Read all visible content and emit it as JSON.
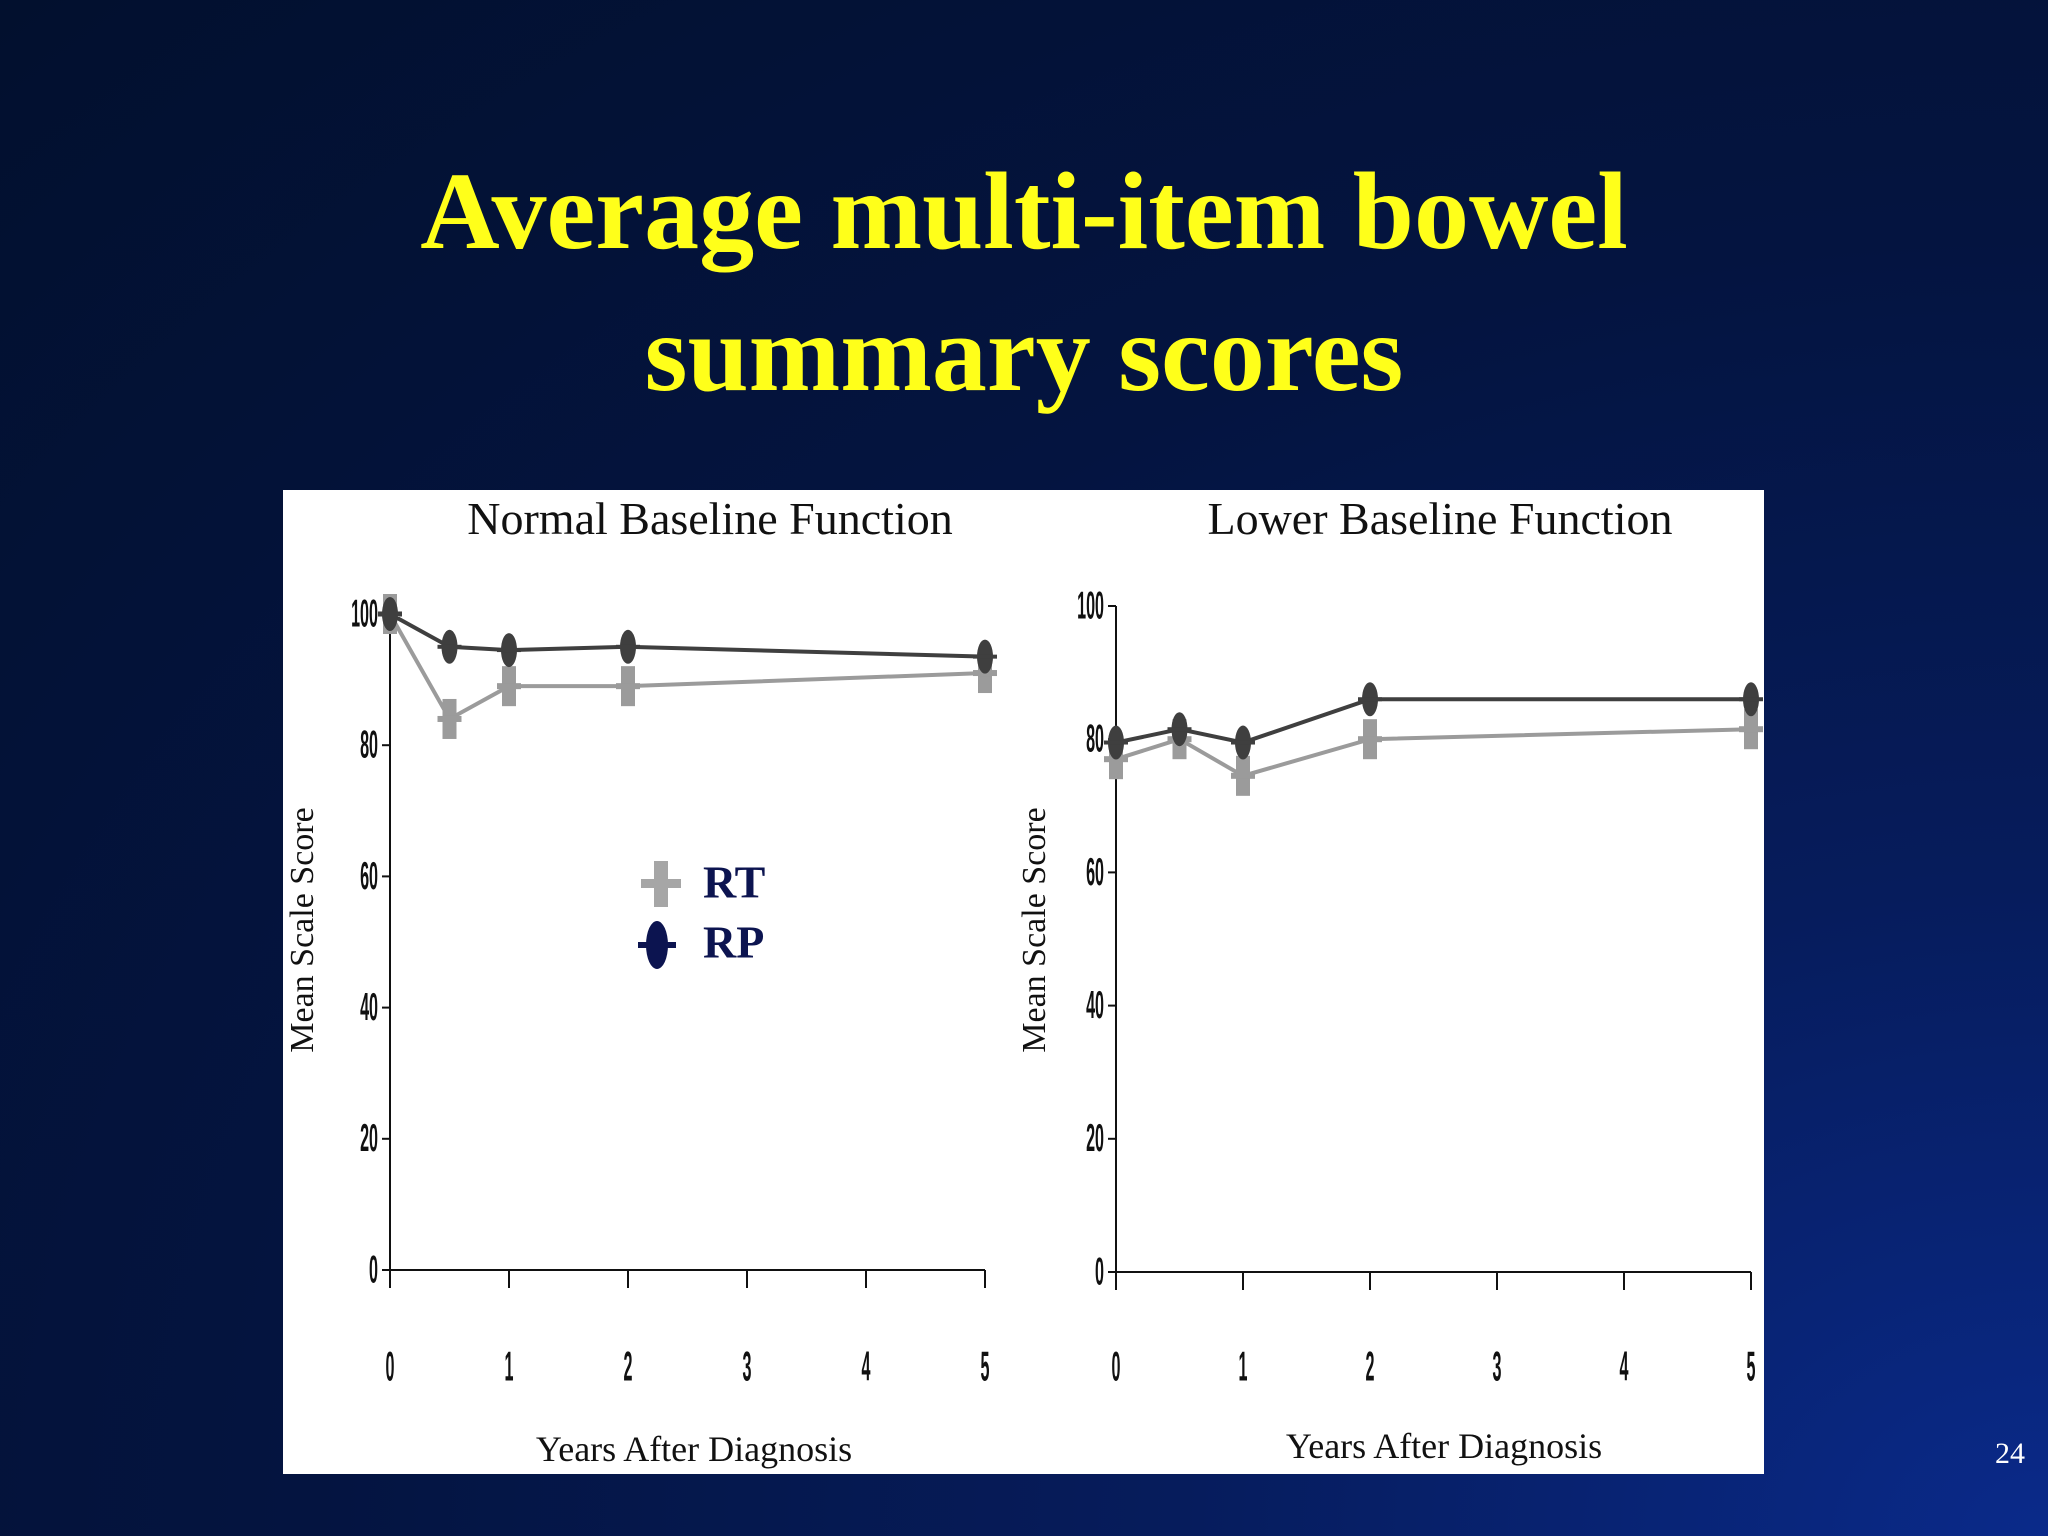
{
  "slide": {
    "title_line1": "Average multi-item bowel",
    "title_line2": "summary scores",
    "page_number": "24"
  },
  "legend": [
    {
      "label": "RT",
      "marker": "square-cross",
      "color": "#a6a6a6"
    },
    {
      "label": "RP",
      "marker": "ellipse-cross",
      "color": "#0c1450"
    }
  ],
  "colors": {
    "title": "#ffff1a",
    "rt": "#9b9b9b",
    "rp": "#3f3f3f",
    "legend_rp": "#0c1450"
  },
  "chart_data": [
    {
      "type": "line",
      "title": "Normal Baseline Function",
      "xlabel": "Years After Diagnosis",
      "ylabel": "Mean Scale Score",
      "x_ticks": [
        "0",
        "1",
        "2",
        "3",
        "4",
        "5"
      ],
      "y_ticks": [
        "0",
        "20",
        "40",
        "60",
        "80",
        "100"
      ],
      "xlim": [
        0,
        5
      ],
      "ylim": [
        0,
        100
      ],
      "series": [
        {
          "name": "RT",
          "x": [
            0,
            0.5,
            1,
            2,
            5
          ],
          "y": [
            100,
            84,
            89,
            89,
            91
          ]
        },
        {
          "name": "RP",
          "x": [
            0,
            0.5,
            1,
            2,
            5
          ],
          "y": [
            100,
            95,
            94.5,
            95,
            93.5
          ]
        }
      ]
    },
    {
      "type": "line",
      "title": "Lower Baseline Function",
      "xlabel": "Years After Diagnosis",
      "ylabel": "Mean Scale Score",
      "x_ticks": [
        "0",
        "1",
        "2",
        "3",
        "4",
        "5"
      ],
      "y_ticks": [
        "0",
        "20",
        "40",
        "60",
        "80",
        "100"
      ],
      "xlim": [
        0,
        5
      ],
      "ylim": [
        0,
        100
      ],
      "series": [
        {
          "name": "RT",
          "x": [
            0,
            0.5,
            1,
            2,
            5
          ],
          "y": [
            77,
            80,
            74.5,
            80,
            81.5
          ]
        },
        {
          "name": "RP",
          "x": [
            0,
            0.5,
            1,
            2,
            5
          ],
          "y": [
            79.5,
            81.5,
            79.5,
            86,
            86
          ]
        }
      ]
    }
  ]
}
